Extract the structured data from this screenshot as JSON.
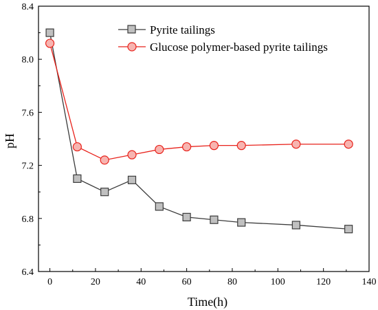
{
  "chart_data": {
    "type": "line",
    "xlabel": "Time(h)",
    "ylabel": "pH",
    "xlim": [
      -5,
      140
    ],
    "ylim": [
      6.4,
      8.4
    ],
    "xticks": [
      0,
      20,
      40,
      60,
      80,
      100,
      120,
      140
    ],
    "yticks": [
      6.4,
      6.8,
      7.2,
      7.6,
      8.0,
      8.4
    ],
    "xtick_labels": [
      "0",
      "20",
      "40",
      "60",
      "80",
      "100",
      "120",
      "140"
    ],
    "ytick_labels": [
      "6.4",
      "6.8",
      "7.2",
      "7.6",
      "8.0",
      "8.4"
    ],
    "grid": false,
    "legend_position": "top-right",
    "series": [
      {
        "name": "Pyrite tailings",
        "color": "#3a3a3a",
        "marker": "square",
        "marker_fill": "#c0c0c0",
        "x": [
          0,
          12,
          24,
          36,
          48,
          60,
          72,
          84,
          108,
          131
        ],
        "y": [
          8.2,
          7.1,
          7.0,
          7.09,
          6.89,
          6.81,
          6.79,
          6.77,
          6.75,
          6.72
        ]
      },
      {
        "name": "Glucose polymer-based pyrite tailings",
        "color": "#e8211a",
        "marker": "circle",
        "marker_fill": "#f7b4b0",
        "x": [
          0,
          12,
          24,
          36,
          48,
          60,
          72,
          84,
          108,
          131
        ],
        "y": [
          8.12,
          7.34,
          7.24,
          7.28,
          7.32,
          7.34,
          7.35,
          7.35,
          7.36,
          7.36
        ]
      }
    ]
  }
}
